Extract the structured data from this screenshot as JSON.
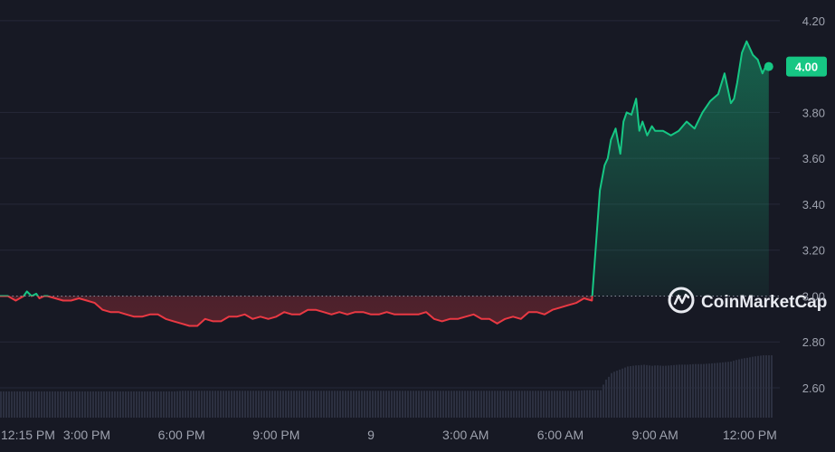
{
  "chart_data": {
    "type": "line",
    "baseline": 3.0,
    "current_price_label": "4.00",
    "watermark": "CoinMarketCap",
    "colors": {
      "background": "#171924",
      "grid": "#262938",
      "up": "#16c784",
      "down": "#ea3943",
      "axis_text": "#9ea2ae",
      "baseline": "#8a8e9c",
      "volume": "#2c3040",
      "watermark": "#e8eaf0"
    },
    "y_ticks": [
      "2.60",
      "2.80",
      "3.20",
      "3.40",
      "3.60",
      "3.80",
      "4.20"
    ],
    "y_tick_values": [
      2.6,
      2.8,
      3.2,
      3.4,
      3.6,
      3.8,
      4.2
    ],
    "baseline_label": "3.00",
    "ylim": [
      2.47,
      4.29
    ],
    "x_labels": [
      "12:15 PM",
      "3:00 PM",
      "6:00 PM",
      "9:00 PM",
      "9",
      "3:00 AM",
      "6:00 AM",
      "9:00 AM",
      "12:00 PM"
    ],
    "x_label_hours": [
      12.25,
      15,
      18,
      21,
      24,
      27,
      30,
      33,
      36
    ],
    "xlim": [
      12.25,
      36.75
    ],
    "x_hours": [
      12.25,
      12.5,
      12.75,
      13.0,
      13.1,
      13.25,
      13.4,
      13.5,
      13.65,
      13.75,
      14.0,
      14.25,
      14.5,
      14.75,
      15.0,
      15.25,
      15.5,
      15.75,
      16.0,
      16.25,
      16.5,
      16.75,
      17.0,
      17.25,
      17.5,
      17.75,
      18.0,
      18.25,
      18.5,
      18.75,
      19.0,
      19.25,
      19.5,
      19.75,
      20.0,
      20.25,
      20.5,
      20.75,
      21.0,
      21.25,
      21.5,
      21.75,
      22.0,
      22.25,
      22.5,
      22.75,
      23.0,
      23.25,
      23.5,
      23.75,
      24.0,
      24.25,
      24.5,
      24.75,
      25.0,
      25.25,
      25.5,
      25.75,
      26.0,
      26.25,
      26.5,
      26.75,
      27.0,
      27.25,
      27.5,
      27.75,
      28.0,
      28.25,
      28.5,
      28.75,
      29.0,
      29.25,
      29.5,
      29.75,
      30.0,
      30.25,
      30.5,
      30.75,
      31.0,
      31.25,
      31.4,
      31.5,
      31.6,
      31.75,
      31.9,
      32.0,
      32.1,
      32.25,
      32.4,
      32.5,
      32.6,
      32.75,
      32.9,
      33.0,
      33.25,
      33.5,
      33.75,
      34.0,
      34.25,
      34.5,
      34.75,
      35.0,
      35.2,
      35.4,
      35.5,
      35.6,
      35.75,
      35.9,
      36.0,
      36.1,
      36.25,
      36.4,
      36.5,
      36.6
    ],
    "prices": [
      3.0,
      3.0,
      2.98,
      3.0,
      3.02,
      3.0,
      3.01,
      2.99,
      3.0,
      3.0,
      2.99,
      2.98,
      2.98,
      2.99,
      2.98,
      2.97,
      2.94,
      2.93,
      2.93,
      2.92,
      2.91,
      2.91,
      2.92,
      2.92,
      2.9,
      2.89,
      2.88,
      2.87,
      2.87,
      2.9,
      2.89,
      2.89,
      2.91,
      2.91,
      2.92,
      2.9,
      2.91,
      2.9,
      2.91,
      2.93,
      2.92,
      2.92,
      2.94,
      2.94,
      2.93,
      2.92,
      2.93,
      2.92,
      2.93,
      2.93,
      2.92,
      2.92,
      2.93,
      2.92,
      2.92,
      2.92,
      2.92,
      2.93,
      2.9,
      2.89,
      2.9,
      2.9,
      2.91,
      2.92,
      2.9,
      2.9,
      2.88,
      2.9,
      2.91,
      2.9,
      2.93,
      2.93,
      2.92,
      2.94,
      2.95,
      2.96,
      2.97,
      2.99,
      2.98,
      3.46,
      3.57,
      3.6,
      3.68,
      3.73,
      3.62,
      3.76,
      3.8,
      3.79,
      3.86,
      3.72,
      3.76,
      3.7,
      3.74,
      3.72,
      3.72,
      3.7,
      3.72,
      3.76,
      3.73,
      3.8,
      3.85,
      3.88,
      3.97,
      3.84,
      3.86,
      3.93,
      4.06,
      4.11,
      4.08,
      4.05,
      4.03,
      3.97,
      4.0,
      4.0
    ],
    "volume": [
      0.42,
      0.42,
      0.42,
      0.42,
      0.42,
      0.42,
      0.42,
      0.42,
      0.42,
      0.42,
      0.42,
      0.42,
      0.42,
      0.42,
      0.42,
      0.42,
      0.42,
      0.42,
      0.42,
      0.42,
      0.42,
      0.42,
      0.42,
      0.42,
      0.42,
      0.42,
      0.43,
      0.43,
      0.43,
      0.43,
      0.43,
      0.43,
      0.43,
      0.43,
      0.43,
      0.43,
      0.43,
      0.43,
      0.43,
      0.43,
      0.43,
      0.43,
      0.43,
      0.43,
      0.43,
      0.43,
      0.43,
      0.43,
      0.43,
      0.43,
      0.43,
      0.43,
      0.43,
      0.43,
      0.43,
      0.43,
      0.43,
      0.43,
      0.43,
      0.43,
      0.43,
      0.43,
      0.43,
      0.43,
      0.43,
      0.43,
      0.43,
      0.43,
      0.43,
      0.43,
      0.43,
      0.43,
      0.43,
      0.43,
      0.43,
      0.43,
      0.43,
      0.44,
      0.44,
      0.44,
      0.6,
      0.65,
      0.72,
      0.75,
      0.78,
      0.8,
      0.82,
      0.83,
      0.84,
      0.84,
      0.85,
      0.84,
      0.83,
      0.84,
      0.83,
      0.84,
      0.85,
      0.85,
      0.86,
      0.86,
      0.87,
      0.88,
      0.89,
      0.9,
      0.92,
      0.93,
      0.95,
      0.96,
      0.97,
      0.98,
      0.99,
      1.0,
      1.0,
      1.0
    ]
  }
}
